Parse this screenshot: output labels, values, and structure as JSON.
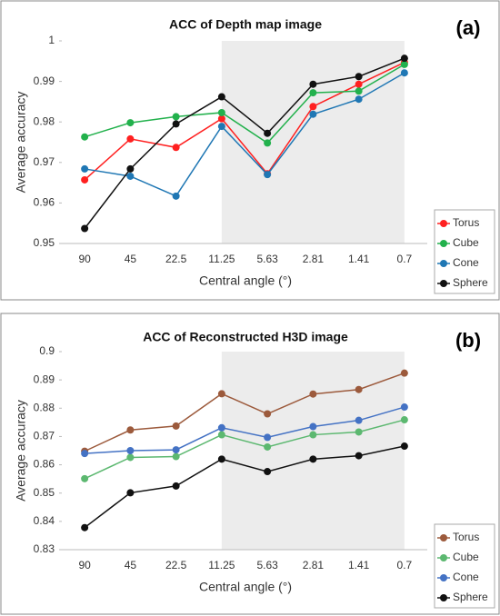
{
  "chart_data": [
    {
      "type": "line",
      "title": "ACC of Depth map image",
      "panel_label": "(a)",
      "x_label": "Central angle (°)",
      "y_label": "Average accuracy",
      "categories": [
        "90",
        "45",
        "22.5",
        "11.25",
        "5.63",
        "2.81",
        "1.41",
        "0.7"
      ],
      "ylim": [
        0.95,
        1
      ],
      "yticks": [
        0.95,
        0.96,
        0.97,
        0.98,
        0.99,
        1
      ],
      "legend": "lower right",
      "series": [
        {
          "name": "Torus",
          "color": "#ff2020",
          "values": [
            0.9657,
            0.9758,
            0.9737,
            0.9808,
            0.9672,
            0.9838,
            0.9893,
            0.9947
          ]
        },
        {
          "name": "Cube",
          "color": "#22b14c",
          "values": [
            0.9763,
            0.9798,
            0.9813,
            0.9823,
            0.9748,
            0.9872,
            0.9876,
            0.9942
          ]
        },
        {
          "name": "Cone",
          "color": "#1f77b4",
          "values": [
            0.9684,
            0.9666,
            0.9617,
            0.9789,
            0.967,
            0.9819,
            0.9856,
            0.9921
          ]
        },
        {
          "name": "Sphere",
          "color": "#111111",
          "values": [
            0.9537,
            0.9684,
            0.9795,
            0.9862,
            0.9772,
            0.9893,
            0.9912,
            0.9957
          ]
        }
      ]
    },
    {
      "type": "line",
      "title": "ACC of Reconstructed H3D image",
      "panel_label": "(b)",
      "x_label": "Central angle (°)",
      "y_label": "Average accuracy",
      "categories": [
        "90",
        "45",
        "22.5",
        "11.25",
        "5.63",
        "2.81",
        "1.41",
        "0.7"
      ],
      "ylim": [
        0.83,
        0.9
      ],
      "yticks": [
        0.83,
        0.84,
        0.85,
        0.86,
        0.87,
        0.88,
        0.89,
        0.9
      ],
      "legend": "lower right",
      "series": [
        {
          "name": "Torus",
          "color": "#9c5a3c",
          "values": [
            0.8648,
            0.8723,
            0.8737,
            0.8851,
            0.878,
            0.885,
            0.8866,
            0.8924
          ]
        },
        {
          "name": "Cube",
          "color": "#5cb870",
          "values": [
            0.8551,
            0.8626,
            0.8629,
            0.8706,
            0.8663,
            0.8706,
            0.8716,
            0.8759
          ]
        },
        {
          "name": "Cone",
          "color": "#4472c4",
          "values": [
            0.864,
            0.865,
            0.8653,
            0.8731,
            0.8697,
            0.8735,
            0.8757,
            0.8804
          ]
        },
        {
          "name": "Sphere",
          "color": "#111111",
          "values": [
            0.8378,
            0.8501,
            0.8525,
            0.862,
            0.8576,
            0.862,
            0.8632,
            0.8666
          ]
        }
      ]
    }
  ]
}
